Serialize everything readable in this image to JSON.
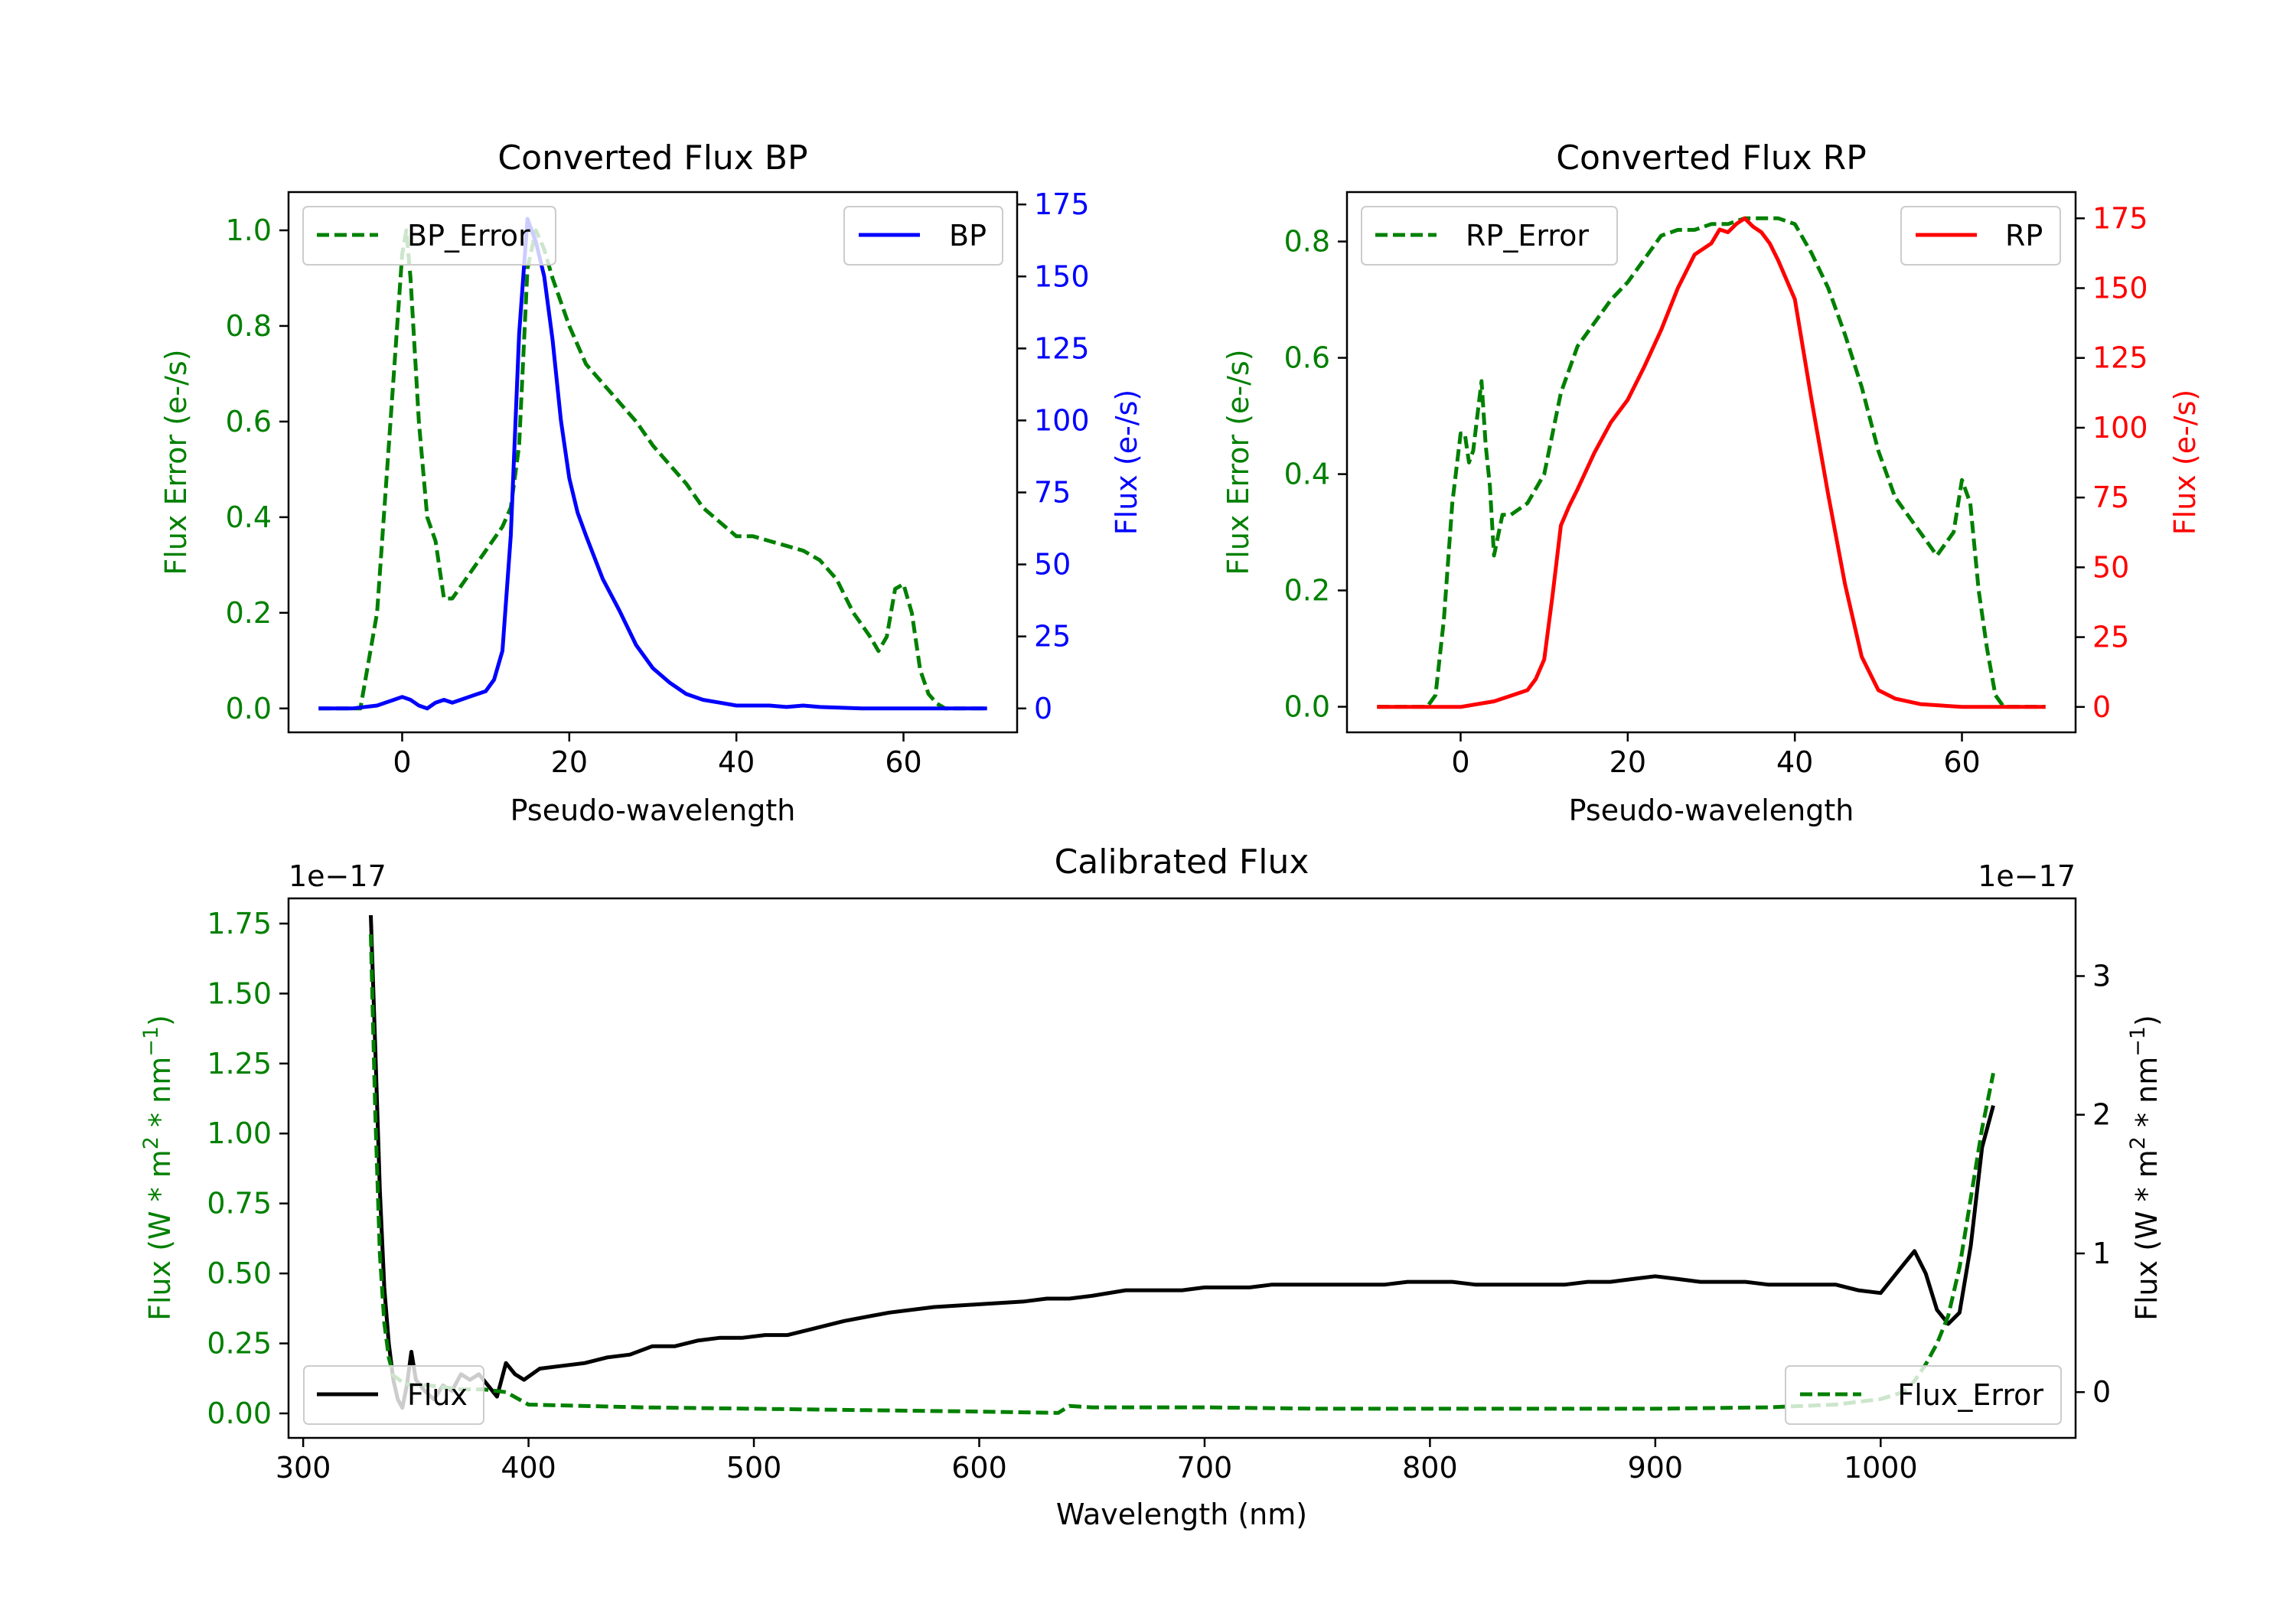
{
  "chart_data": [
    {
      "id": "bp",
      "type": "line",
      "title": "Converted Flux BP",
      "xlabel": "Pseudo-wavelength",
      "ylabel_left": "Flux Error (e-/s)",
      "ylabel_right": "Flux (e-/s)",
      "xlim": [
        -13.6,
        73.6
      ],
      "ylim_left": [
        -0.05,
        1.08
      ],
      "ylim_right": [
        -8.3,
        179.3
      ],
      "xticks": [
        0,
        20,
        40,
        60
      ],
      "yticks_left": [
        0.0,
        0.2,
        0.4,
        0.6,
        0.8,
        1.0
      ],
      "yticks_right": [
        0,
        25,
        50,
        75,
        100,
        125,
        150,
        175
      ],
      "legend_left": "BP_Error",
      "legend_right": "BP",
      "colors": {
        "error": "#008000",
        "flux": "#0000ff",
        "left_axis": "#008000",
        "right_axis": "#0000ff"
      },
      "series": [
        {
          "name": "BP_Error",
          "axis": "left",
          "style": "dashed",
          "x": [
            -10,
            -5,
            -3,
            -1,
            0,
            0.5,
            1,
            2,
            3,
            4,
            5,
            6,
            8,
            10,
            12,
            13,
            14,
            15,
            16,
            17,
            18,
            20,
            22,
            24,
            26,
            28,
            30,
            32,
            34,
            36,
            38,
            40,
            42,
            44,
            46,
            48,
            50,
            52,
            54,
            56,
            57,
            58,
            59,
            60,
            61,
            62,
            63,
            64,
            65,
            67,
            70
          ],
          "values": [
            0.0,
            0.0,
            0.2,
            0.7,
            0.95,
            1.0,
            0.9,
            0.6,
            0.4,
            0.35,
            0.23,
            0.23,
            0.28,
            0.33,
            0.38,
            0.42,
            0.55,
            0.92,
            1.0,
            0.96,
            0.9,
            0.8,
            0.72,
            0.68,
            0.64,
            0.6,
            0.55,
            0.51,
            0.47,
            0.42,
            0.39,
            0.36,
            0.36,
            0.35,
            0.34,
            0.33,
            0.31,
            0.27,
            0.2,
            0.15,
            0.12,
            0.15,
            0.25,
            0.26,
            0.2,
            0.08,
            0.03,
            0.01,
            0.0,
            0.0,
            0.0
          ]
        },
        {
          "name": "BP",
          "axis": "right",
          "style": "solid",
          "x": [
            -10,
            -6,
            -3,
            -1,
            0,
            1,
            2,
            3,
            4,
            5,
            6,
            7,
            8,
            10,
            11,
            12,
            13,
            14,
            15,
            16,
            17,
            18,
            19,
            20,
            21,
            22,
            24,
            26,
            28,
            30,
            32,
            34,
            36,
            38,
            40,
            44,
            46,
            48,
            50,
            55,
            60,
            70
          ],
          "values": [
            0,
            0,
            1,
            3,
            4,
            3,
            1,
            0,
            2,
            3,
            2,
            3,
            4,
            6,
            10,
            20,
            60,
            130,
            170,
            162,
            150,
            128,
            100,
            80,
            68,
            60,
            45,
            34,
            22,
            14,
            9,
            5,
            3,
            2,
            1,
            1,
            0.5,
            1,
            0.5,
            0,
            0,
            0
          ]
        }
      ]
    },
    {
      "id": "rp",
      "type": "line",
      "title": "Converted Flux RP",
      "xlabel": "Pseudo-wavelength",
      "ylabel_left": "Flux Error (e-/s)",
      "ylabel_right": "Flux (e-/s)",
      "xlim": [
        -13.6,
        73.6
      ],
      "ylim_left": [
        -0.044,
        0.885
      ],
      "ylim_right": [
        -9.1,
        184.4
      ],
      "xticks": [
        0,
        20,
        40,
        60
      ],
      "yticks_left": [
        0.0,
        0.2,
        0.4,
        0.6,
        0.8
      ],
      "yticks_right": [
        0,
        25,
        50,
        75,
        100,
        125,
        150,
        175
      ],
      "legend_left": "RP_Error",
      "legend_right": "RP",
      "colors": {
        "error": "#008000",
        "flux": "#ff0000",
        "left_axis": "#008000",
        "right_axis": "#ff0000"
      },
      "series": [
        {
          "name": "RP_Error",
          "axis": "left",
          "style": "dashed",
          "x": [
            -10,
            -4,
            -3,
            -2,
            -1,
            0,
            0.5,
            1,
            1.5,
            2,
            2.5,
            3,
            3.5,
            4,
            5,
            6,
            8,
            10,
            12,
            14,
            16,
            18,
            20,
            22,
            24,
            26,
            28,
            30,
            32,
            34,
            36,
            38,
            40,
            42,
            44,
            46,
            48,
            50,
            52,
            54,
            55,
            56,
            57,
            58,
            59,
            60,
            61,
            62,
            63,
            64,
            65,
            70
          ],
          "values": [
            0.0,
            0.0,
            0.02,
            0.15,
            0.35,
            0.47,
            0.47,
            0.42,
            0.44,
            0.5,
            0.56,
            0.45,
            0.38,
            0.26,
            0.33,
            0.33,
            0.35,
            0.4,
            0.54,
            0.62,
            0.66,
            0.7,
            0.73,
            0.77,
            0.81,
            0.82,
            0.82,
            0.83,
            0.83,
            0.84,
            0.84,
            0.84,
            0.83,
            0.78,
            0.72,
            0.64,
            0.55,
            0.44,
            0.36,
            0.32,
            0.3,
            0.28,
            0.26,
            0.28,
            0.3,
            0.39,
            0.35,
            0.2,
            0.1,
            0.02,
            0.0,
            0.0
          ]
        },
        {
          "name": "RP",
          "axis": "right",
          "style": "solid",
          "x": [
            -10,
            -4,
            0,
            2,
            4,
            6,
            8,
            9,
            10,
            11,
            12,
            13,
            14,
            16,
            18,
            20,
            22,
            24,
            26,
            28,
            30,
            31,
            32,
            33,
            34,
            35,
            36,
            37,
            38,
            39,
            40,
            41,
            42,
            44,
            46,
            48,
            50,
            52,
            55,
            60,
            65,
            70
          ],
          "values": [
            0,
            0,
            0,
            1,
            2,
            4,
            6,
            10,
            17,
            40,
            65,
            72,
            78,
            91,
            102,
            110,
            122,
            135,
            150,
            162,
            166,
            171,
            170,
            173,
            175,
            172,
            170,
            166,
            160,
            153,
            146,
            128,
            110,
            76,
            44,
            18,
            6,
            3,
            1,
            0,
            0,
            0
          ]
        }
      ]
    },
    {
      "id": "cal",
      "type": "line",
      "title": "Calibrated Flux",
      "xlabel": "Wavelength (nm)",
      "ylabel_left_pre": "Flux (W * m",
      "ylabel_mid": " * nm",
      "ylabel_sup1": "2",
      "ylabel_sup2": "−1",
      "ylabel_post": ")",
      "offset_left": "1e−17",
      "offset_right": "1e−17",
      "xlim": [
        293.5,
        1086.5
      ],
      "ylim_left": [
        -0.0875,
        1.84
      ],
      "ylim_right": [
        -0.33,
        3.56
      ],
      "xticks": [
        300,
        400,
        500,
        600,
        700,
        800,
        900,
        1000
      ],
      "yticks_left": [
        "0.00",
        "0.25",
        "0.50",
        "0.75",
        "1.00",
        "1.25",
        "1.50",
        "1.75"
      ],
      "yticks_right": [
        0,
        1,
        2,
        3
      ],
      "legend_left": "Flux",
      "legend_right": "Flux_Error",
      "colors": {
        "error": "#008000",
        "flux": "#000000",
        "left_axis": "#008000",
        "right_axis": "#000000"
      },
      "series": [
        {
          "name": "Flux",
          "axis": "left",
          "style": "solid",
          "x": [
            330,
            332,
            334,
            336,
            338,
            340,
            342,
            344,
            346,
            348,
            350,
            354,
            358,
            362,
            366,
            370,
            374,
            378,
            382,
            386,
            390,
            394,
            398,
            405,
            415,
            425,
            435,
            445,
            455,
            465,
            475,
            485,
            495,
            505,
            515,
            525,
            540,
            560,
            580,
            600,
            620,
            630,
            640,
            650,
            665,
            680,
            690,
            700,
            710,
            720,
            730,
            740,
            750,
            760,
            770,
            780,
            790,
            800,
            810,
            820,
            830,
            840,
            850,
            860,
            870,
            880,
            890,
            900,
            910,
            920,
            930,
            940,
            950,
            960,
            970,
            980,
            990,
            1000,
            1010,
            1015,
            1020,
            1025,
            1030,
            1035,
            1040,
            1045,
            1050
          ],
          "values": [
            1.78,
            1.3,
            0.8,
            0.45,
            0.25,
            0.12,
            0.05,
            0.02,
            0.1,
            0.22,
            0.12,
            0.08,
            0.05,
            0.1,
            0.08,
            0.14,
            0.12,
            0.14,
            0.1,
            0.06,
            0.18,
            0.14,
            0.12,
            0.16,
            0.17,
            0.18,
            0.2,
            0.21,
            0.24,
            0.24,
            0.26,
            0.27,
            0.27,
            0.28,
            0.28,
            0.3,
            0.33,
            0.36,
            0.38,
            0.39,
            0.4,
            0.41,
            0.41,
            0.42,
            0.44,
            0.44,
            0.44,
            0.45,
            0.45,
            0.45,
            0.46,
            0.46,
            0.46,
            0.46,
            0.46,
            0.46,
            0.47,
            0.47,
            0.47,
            0.46,
            0.46,
            0.46,
            0.46,
            0.46,
            0.47,
            0.47,
            0.48,
            0.49,
            0.48,
            0.47,
            0.47,
            0.47,
            0.46,
            0.46,
            0.46,
            0.46,
            0.44,
            0.43,
            0.53,
            0.58,
            0.5,
            0.37,
            0.32,
            0.36,
            0.6,
            0.95,
            1.1
          ]
        },
        {
          "name": "Flux_Error",
          "axis": "right",
          "style": "dashed",
          "x": [
            330,
            332,
            334,
            336,
            338,
            340,
            345,
            350,
            355,
            360,
            370,
            380,
            390,
            400,
            450,
            500,
            550,
            600,
            635,
            640,
            650,
            700,
            750,
            800,
            850,
            900,
            950,
            980,
            1000,
            1010,
            1015,
            1020,
            1025,
            1030,
            1035,
            1040,
            1045,
            1050
          ],
          "values": [
            3.3,
            2.0,
            1.0,
            0.5,
            0.25,
            0.12,
            0.06,
            0.05,
            0.05,
            0.04,
            0.02,
            0.02,
            0.0,
            -0.09,
            -0.11,
            -0.12,
            -0.13,
            -0.14,
            -0.15,
            -0.1,
            -0.11,
            -0.11,
            -0.12,
            -0.12,
            -0.12,
            -0.12,
            -0.11,
            -0.09,
            -0.05,
            0.0,
            0.08,
            0.2,
            0.35,
            0.55,
            0.9,
            1.4,
            1.9,
            2.3
          ]
        }
      ]
    }
  ]
}
